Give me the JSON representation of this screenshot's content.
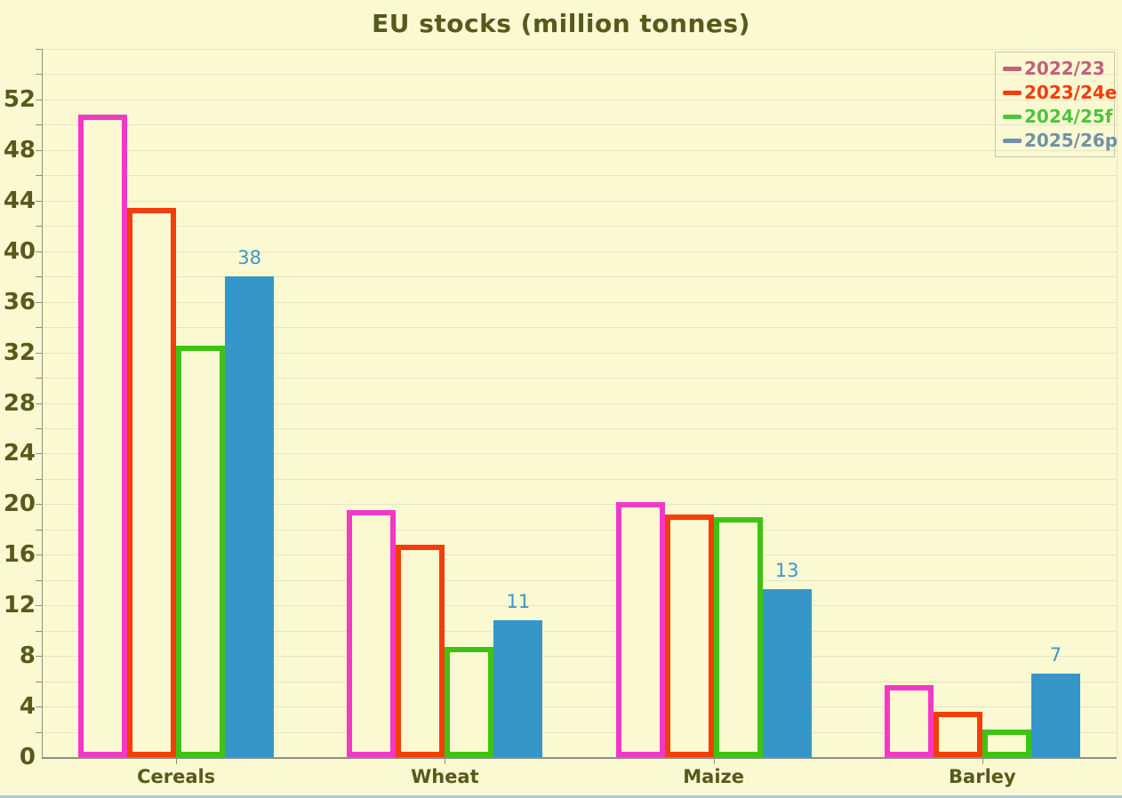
{
  "chart_data": {
    "type": "bar",
    "title": "EU stocks (million tonnes)",
    "categories": [
      "Cereals",
      "Wheat",
      "Maize",
      "Barley"
    ],
    "series": [
      {
        "name": "2022/23",
        "style": "outline",
        "color": "#f338c7",
        "legend_color": "#c25f7b",
        "values": [
          50.8,
          19.5,
          20.2,
          5.7
        ]
      },
      {
        "name": "2023/24e",
        "style": "outline",
        "color": "#f53c0a",
        "legend_color": "#f53c0a",
        "values": [
          43.4,
          16.8,
          19.2,
          3.6
        ]
      },
      {
        "name": "2024/25f",
        "style": "outline",
        "color": "#3fc312",
        "legend_color": "#4ec43c",
        "values": [
          32.5,
          8.7,
          19.0,
          2.2
        ]
      },
      {
        "name": "2025/26p",
        "style": "fill",
        "color": "#3596c9",
        "legend_color": "#6e92a8",
        "values": [
          38.0,
          10.8,
          13.3,
          6.6
        ],
        "data_labels": [
          "38",
          "11",
          "13",
          "7"
        ]
      }
    ],
    "ylim": [
      0,
      56
    ],
    "grid_step": 2,
    "y_label_step": 4,
    "y_labels": [
      "0",
      "4",
      "8",
      "12",
      "16",
      "20",
      "24",
      "28",
      "32",
      "36",
      "40",
      "44",
      "48",
      "52"
    ],
    "grid": "on",
    "legend_position": "top-right",
    "xlabel": "",
    "ylabel": ""
  },
  "theme": {
    "background": "#fbf9d2",
    "grid_color": "#e6e5c3",
    "axis_color": "#8f8f7e",
    "text_color": "#565a1c",
    "value_label_color": "#3b97cb",
    "legend_border_color": "#c8c8b0",
    "bottom_strip_color": "#aec9e0"
  }
}
